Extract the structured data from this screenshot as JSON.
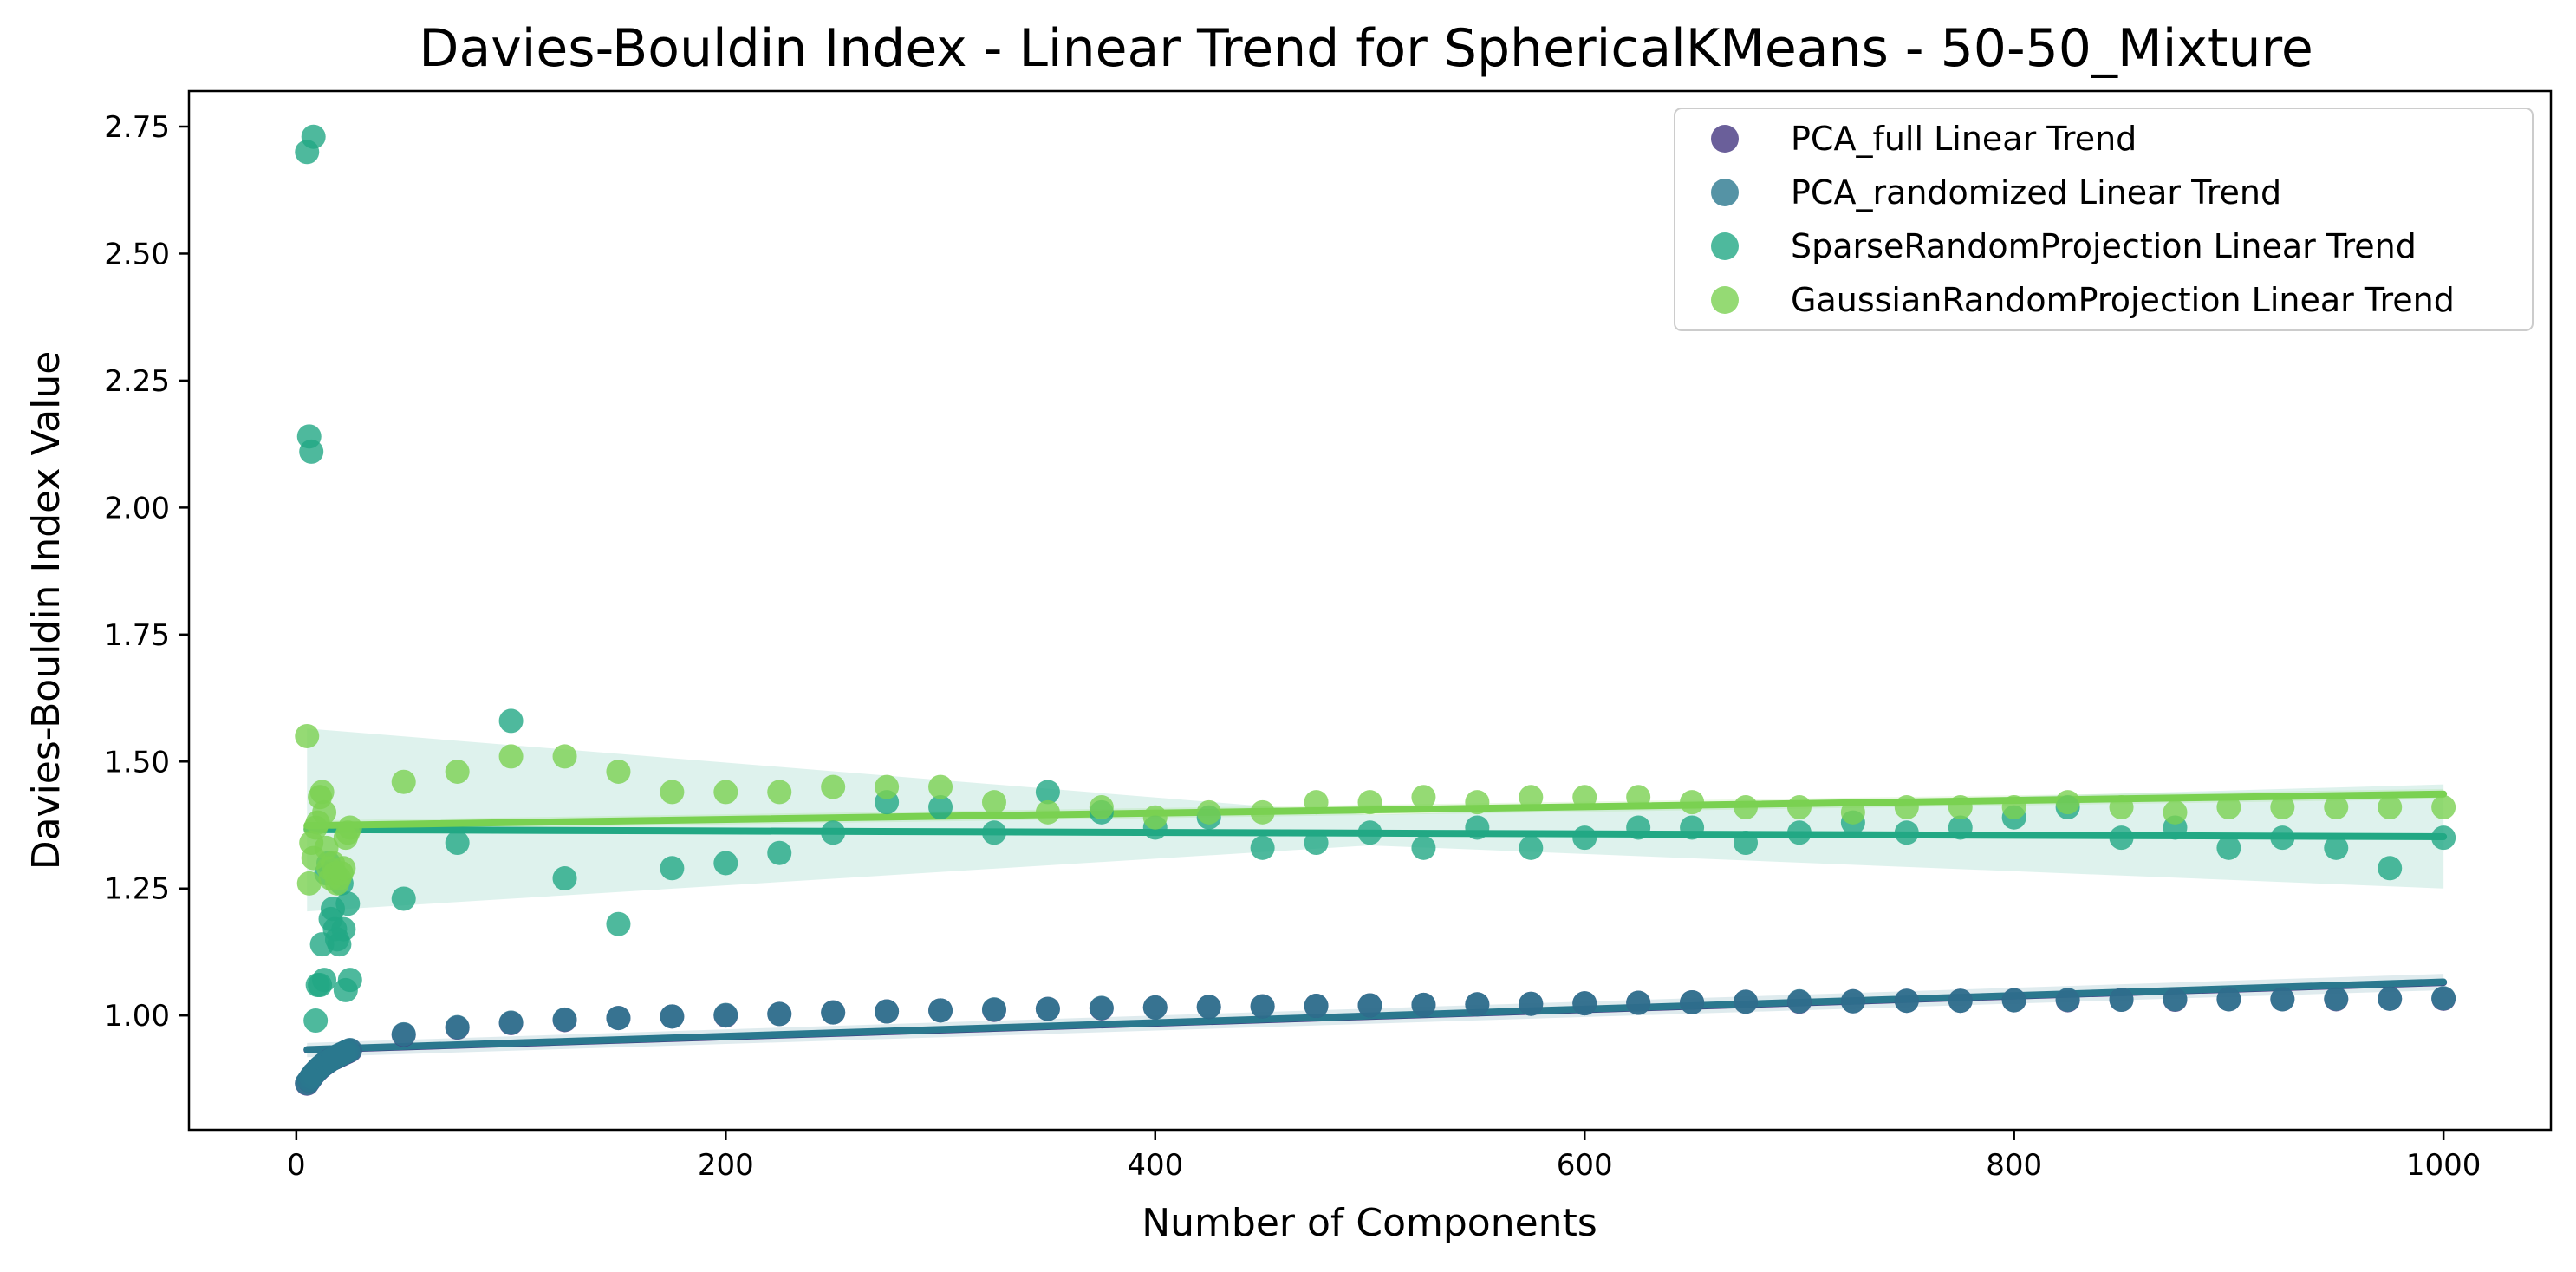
{
  "chart_data": {
    "type": "scatter",
    "title": "Davies-Bouldin Index - Linear Trend for SphericalKMeans - 50-50_Mixture",
    "xlabel": "Number of Components",
    "ylabel": "Davies-Bouldin Index Value",
    "xlim": [
      -50,
      1050
    ],
    "ylim": [
      0.775,
      2.82
    ],
    "xticks": [
      0,
      200,
      400,
      600,
      800,
      1000
    ],
    "yticks": [
      1.0,
      1.25,
      1.5,
      1.75,
      2.0,
      2.25,
      2.5,
      2.75
    ],
    "xtick_labels": [
      "0",
      "200",
      "400",
      "600",
      "800",
      "1000"
    ],
    "ytick_labels": [
      "1.00",
      "1.25",
      "1.50",
      "1.75",
      "2.00",
      "2.25",
      "2.50",
      "2.75"
    ],
    "grid": false,
    "legend_position": "top-right",
    "series": [
      {
        "name": "PCA_full Linear Trend",
        "color": "#453781",
        "x": [
          5,
          6,
          7,
          8,
          9,
          10,
          11,
          12,
          13,
          14,
          15,
          16,
          17,
          18,
          19,
          20,
          21,
          22,
          23,
          24,
          25,
          50,
          75,
          100,
          125,
          150,
          175,
          200,
          225,
          250,
          275,
          300,
          325,
          350,
          375,
          400,
          425,
          450,
          475,
          500,
          525,
          550,
          575,
          600,
          625,
          650,
          675,
          700,
          725,
          750,
          775,
          800,
          825,
          850,
          875,
          900,
          925,
          950,
          975,
          1000
        ],
        "y": [
          0.866,
          0.872,
          0.878,
          0.884,
          0.889,
          0.893,
          0.897,
          0.901,
          0.904,
          0.907,
          0.91,
          0.913,
          0.915,
          0.917,
          0.919,
          0.921,
          0.923,
          0.925,
          0.927,
          0.929,
          0.931,
          0.962,
          0.976,
          0.985,
          0.991,
          0.995,
          0.998,
          1.0,
          1.003,
          1.006,
          1.008,
          1.01,
          1.011,
          1.013,
          1.014,
          1.016,
          1.017,
          1.018,
          1.019,
          1.02,
          1.021,
          1.022,
          1.023,
          1.024,
          1.025,
          1.026,
          1.027,
          1.027,
          1.028,
          1.029,
          1.029,
          1.03,
          1.03,
          1.031,
          1.031,
          1.032,
          1.032,
          1.032,
          1.033,
          1.033
        ],
        "trend": [
          [
            5,
            0.932
          ],
          [
            1000,
            1.065
          ]
        ]
      },
      {
        "name": "PCA_randomized Linear Trend",
        "color": "#2a788e",
        "x": [
          5,
          6,
          7,
          8,
          9,
          10,
          11,
          12,
          13,
          14,
          15,
          16,
          17,
          18,
          19,
          20,
          21,
          22,
          23,
          24,
          25,
          50,
          75,
          100,
          125,
          150,
          175,
          200,
          225,
          250,
          275,
          300,
          325,
          350,
          375,
          400,
          425,
          450,
          475,
          500,
          525,
          550,
          575,
          600,
          625,
          650,
          675,
          700,
          725,
          750,
          775,
          800,
          825,
          850,
          875,
          900,
          925,
          950,
          975,
          1000
        ],
        "y": [
          0.867,
          0.873,
          0.879,
          0.885,
          0.889,
          0.894,
          0.898,
          0.901,
          0.905,
          0.908,
          0.91,
          0.913,
          0.915,
          0.918,
          0.92,
          0.922,
          0.924,
          0.926,
          0.928,
          0.93,
          0.932,
          0.963,
          0.977,
          0.986,
          0.992,
          0.995,
          0.998,
          1.001,
          1.003,
          1.006,
          1.008,
          1.01,
          1.012,
          1.013,
          1.015,
          1.016,
          1.017,
          1.018,
          1.019,
          1.02,
          1.021,
          1.022,
          1.023,
          1.024,
          1.025,
          1.026,
          1.027,
          1.028,
          1.028,
          1.029,
          1.029,
          1.03,
          1.031,
          1.031,
          1.032,
          1.032,
          1.032,
          1.033,
          1.033,
          1.034
        ],
        "trend": [
          [
            5,
            0.933
          ],
          [
            1000,
            1.066
          ]
        ],
        "ci": [
          [
            5,
            0.918,
            0.946
          ],
          [
            1000,
            1.05,
            1.082
          ]
        ]
      },
      {
        "name": "SparseRandomProjection Linear Trend",
        "color": "#22a884",
        "x": [
          5,
          6,
          7,
          8,
          9,
          10,
          11,
          12,
          13,
          14,
          15,
          16,
          17,
          18,
          19,
          20,
          21,
          22,
          23,
          24,
          25,
          50,
          75,
          100,
          125,
          150,
          175,
          200,
          225,
          250,
          275,
          300,
          325,
          350,
          375,
          400,
          425,
          450,
          475,
          500,
          525,
          550,
          575,
          600,
          625,
          650,
          675,
          700,
          725,
          750,
          775,
          800,
          825,
          850,
          875,
          900,
          925,
          950,
          975,
          1000
        ],
        "y": [
          2.7,
          2.14,
          2.11,
          2.73,
          0.99,
          1.06,
          1.06,
          1.14,
          1.07,
          1.28,
          1.3,
          1.19,
          1.21,
          1.17,
          1.15,
          1.14,
          1.26,
          1.17,
          1.05,
          1.22,
          1.07,
          1.23,
          1.34,
          1.58,
          1.27,
          1.18,
          1.29,
          1.3,
          1.32,
          1.36,
          1.42,
          1.41,
          1.36,
          1.44,
          1.4,
          1.37,
          1.39,
          1.33,
          1.34,
          1.36,
          1.33,
          1.37,
          1.33,
          1.35,
          1.37,
          1.37,
          1.34,
          1.36,
          1.38,
          1.36,
          1.37,
          1.39,
          1.41,
          1.35,
          1.37,
          1.33,
          1.35,
          1.33,
          1.29,
          1.35
        ],
        "trend": [
          [
            5,
            1.366
          ],
          [
            1000,
            1.352
          ]
        ],
        "ci": [
          [
            5,
            1.205,
            1.565
          ],
          [
            500,
            1.335,
            1.395
          ],
          [
            1000,
            1.25,
            1.455
          ]
        ]
      },
      {
        "name": "GaussianRandomProjection Linear Trend",
        "color": "#7ad151",
        "x": [
          5,
          6,
          7,
          8,
          9,
          10,
          11,
          12,
          13,
          14,
          15,
          16,
          17,
          18,
          19,
          20,
          21,
          22,
          23,
          24,
          25,
          50,
          75,
          100,
          125,
          150,
          175,
          200,
          225,
          250,
          275,
          300,
          325,
          350,
          375,
          400,
          425,
          450,
          475,
          500,
          525,
          550,
          575,
          600,
          625,
          650,
          675,
          700,
          725,
          750,
          775,
          800,
          825,
          850,
          875,
          900,
          925,
          950,
          975,
          1000
        ],
        "y": [
          1.55,
          1.26,
          1.34,
          1.31,
          1.37,
          1.38,
          1.43,
          1.44,
          1.4,
          1.33,
          1.29,
          1.27,
          1.3,
          1.28,
          1.26,
          1.27,
          1.28,
          1.29,
          1.35,
          1.36,
          1.37,
          1.46,
          1.48,
          1.51,
          1.51,
          1.48,
          1.44,
          1.44,
          1.44,
          1.45,
          1.45,
          1.45,
          1.42,
          1.4,
          1.41,
          1.39,
          1.4,
          1.4,
          1.42,
          1.42,
          1.43,
          1.42,
          1.43,
          1.43,
          1.43,
          1.42,
          1.41,
          1.41,
          1.4,
          1.41,
          1.41,
          1.41,
          1.42,
          1.41,
          1.4,
          1.41,
          1.41,
          1.41,
          1.41,
          1.41
        ],
        "trend": [
          [
            5,
            1.374
          ],
          [
            1000,
            1.436
          ]
        ],
        "ci": [
          [
            5,
            1.364,
            1.384
          ],
          [
            1000,
            1.426,
            1.446
          ]
        ]
      }
    ]
  }
}
